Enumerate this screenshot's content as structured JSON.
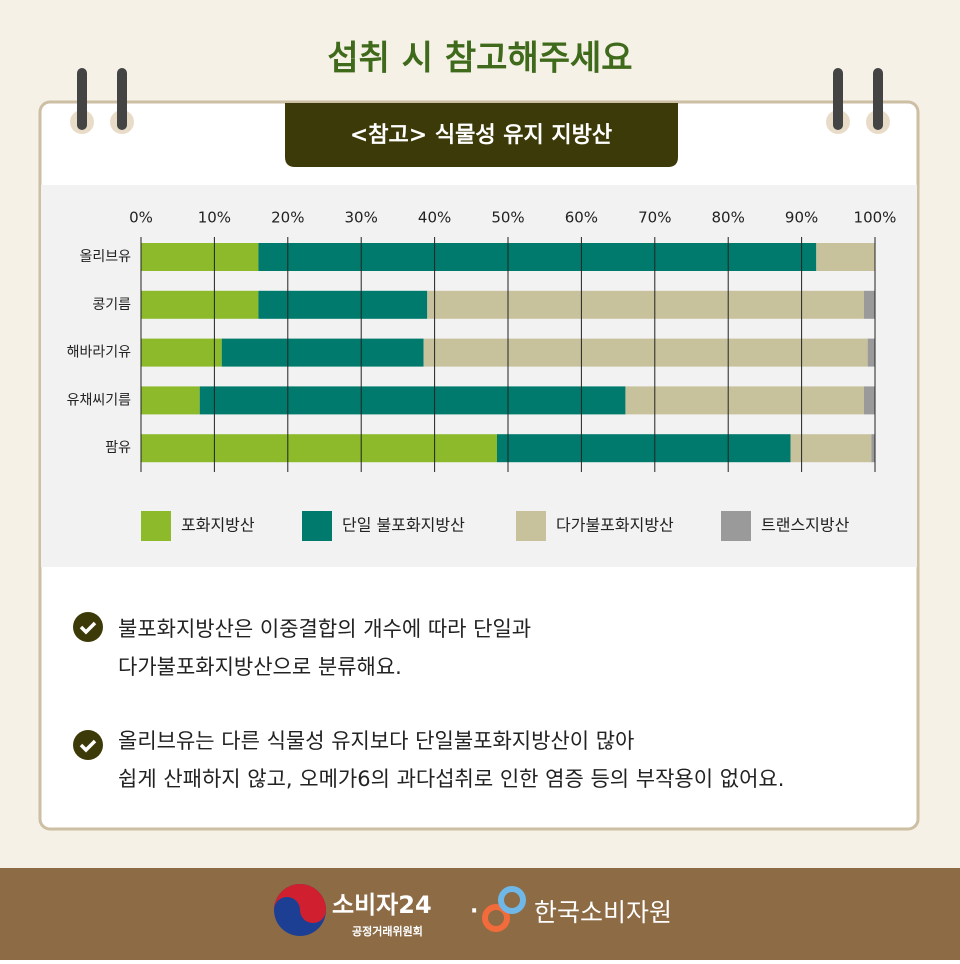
{
  "header": {
    "title": "섭취 시 참고해주세요",
    "tab": "<참고> 식물성 유지 지방산"
  },
  "chart_data": {
    "type": "stacked-bar-horizontal",
    "categories": [
      "올리브유",
      "콩기름",
      "해바라기유",
      "유채씨기름",
      "팜유"
    ],
    "series": [
      {
        "name": "포화지방산",
        "color": "#8cba2a",
        "values": [
          16,
          16,
          11,
          8,
          48.5
        ]
      },
      {
        "name": "단일 불포화지방산",
        "color": "#007a6c",
        "values": [
          76,
          23,
          27.5,
          58,
          40
        ]
      },
      {
        "name": "다가불포화지방산",
        "color": "#c8c29c",
        "values": [
          8,
          59.5,
          60.5,
          32.5,
          11
        ]
      },
      {
        "name": "트랜스지방산",
        "color": "#9a9a9a",
        "values": [
          0,
          1.5,
          1,
          1.5,
          0.5
        ]
      }
    ],
    "xlim": [
      0,
      100
    ],
    "xticks": [
      {
        "value": 0,
        "label": "0%"
      },
      {
        "value": 10,
        "label": "10%"
      },
      {
        "value": 20,
        "label": "20%"
      },
      {
        "value": 30,
        "label": "30%"
      },
      {
        "value": 40,
        "label": "40%"
      },
      {
        "value": 50,
        "label": "50%"
      },
      {
        "value": 60,
        "label": "60%"
      },
      {
        "value": 70,
        "label": "70%"
      },
      {
        "value": 80,
        "label": "80%"
      },
      {
        "value": 90,
        "label": "90%"
      },
      {
        "value": 100,
        "label": "100%"
      }
    ],
    "grid": true,
    "legend": "bottom"
  },
  "bullets": [
    {
      "lines": [
        "불포화지방산은 이중결합의 개수에 따라 단일과",
        "다가불포화지방산으로 분류해요."
      ]
    },
    {
      "lines": [
        "올리브유는 다른 식물성 유지보다 단일불포화지방산이 많아",
        "쉽게 산패하지 않고, 오메가6의 과다섭취로 인한 염증 등의 부작용이 없어요."
      ]
    }
  ],
  "footer": {
    "logo1": "소비자24",
    "logo1_sub": "공정거래위원회",
    "separator": "·",
    "logo2": "한국소비자원"
  }
}
